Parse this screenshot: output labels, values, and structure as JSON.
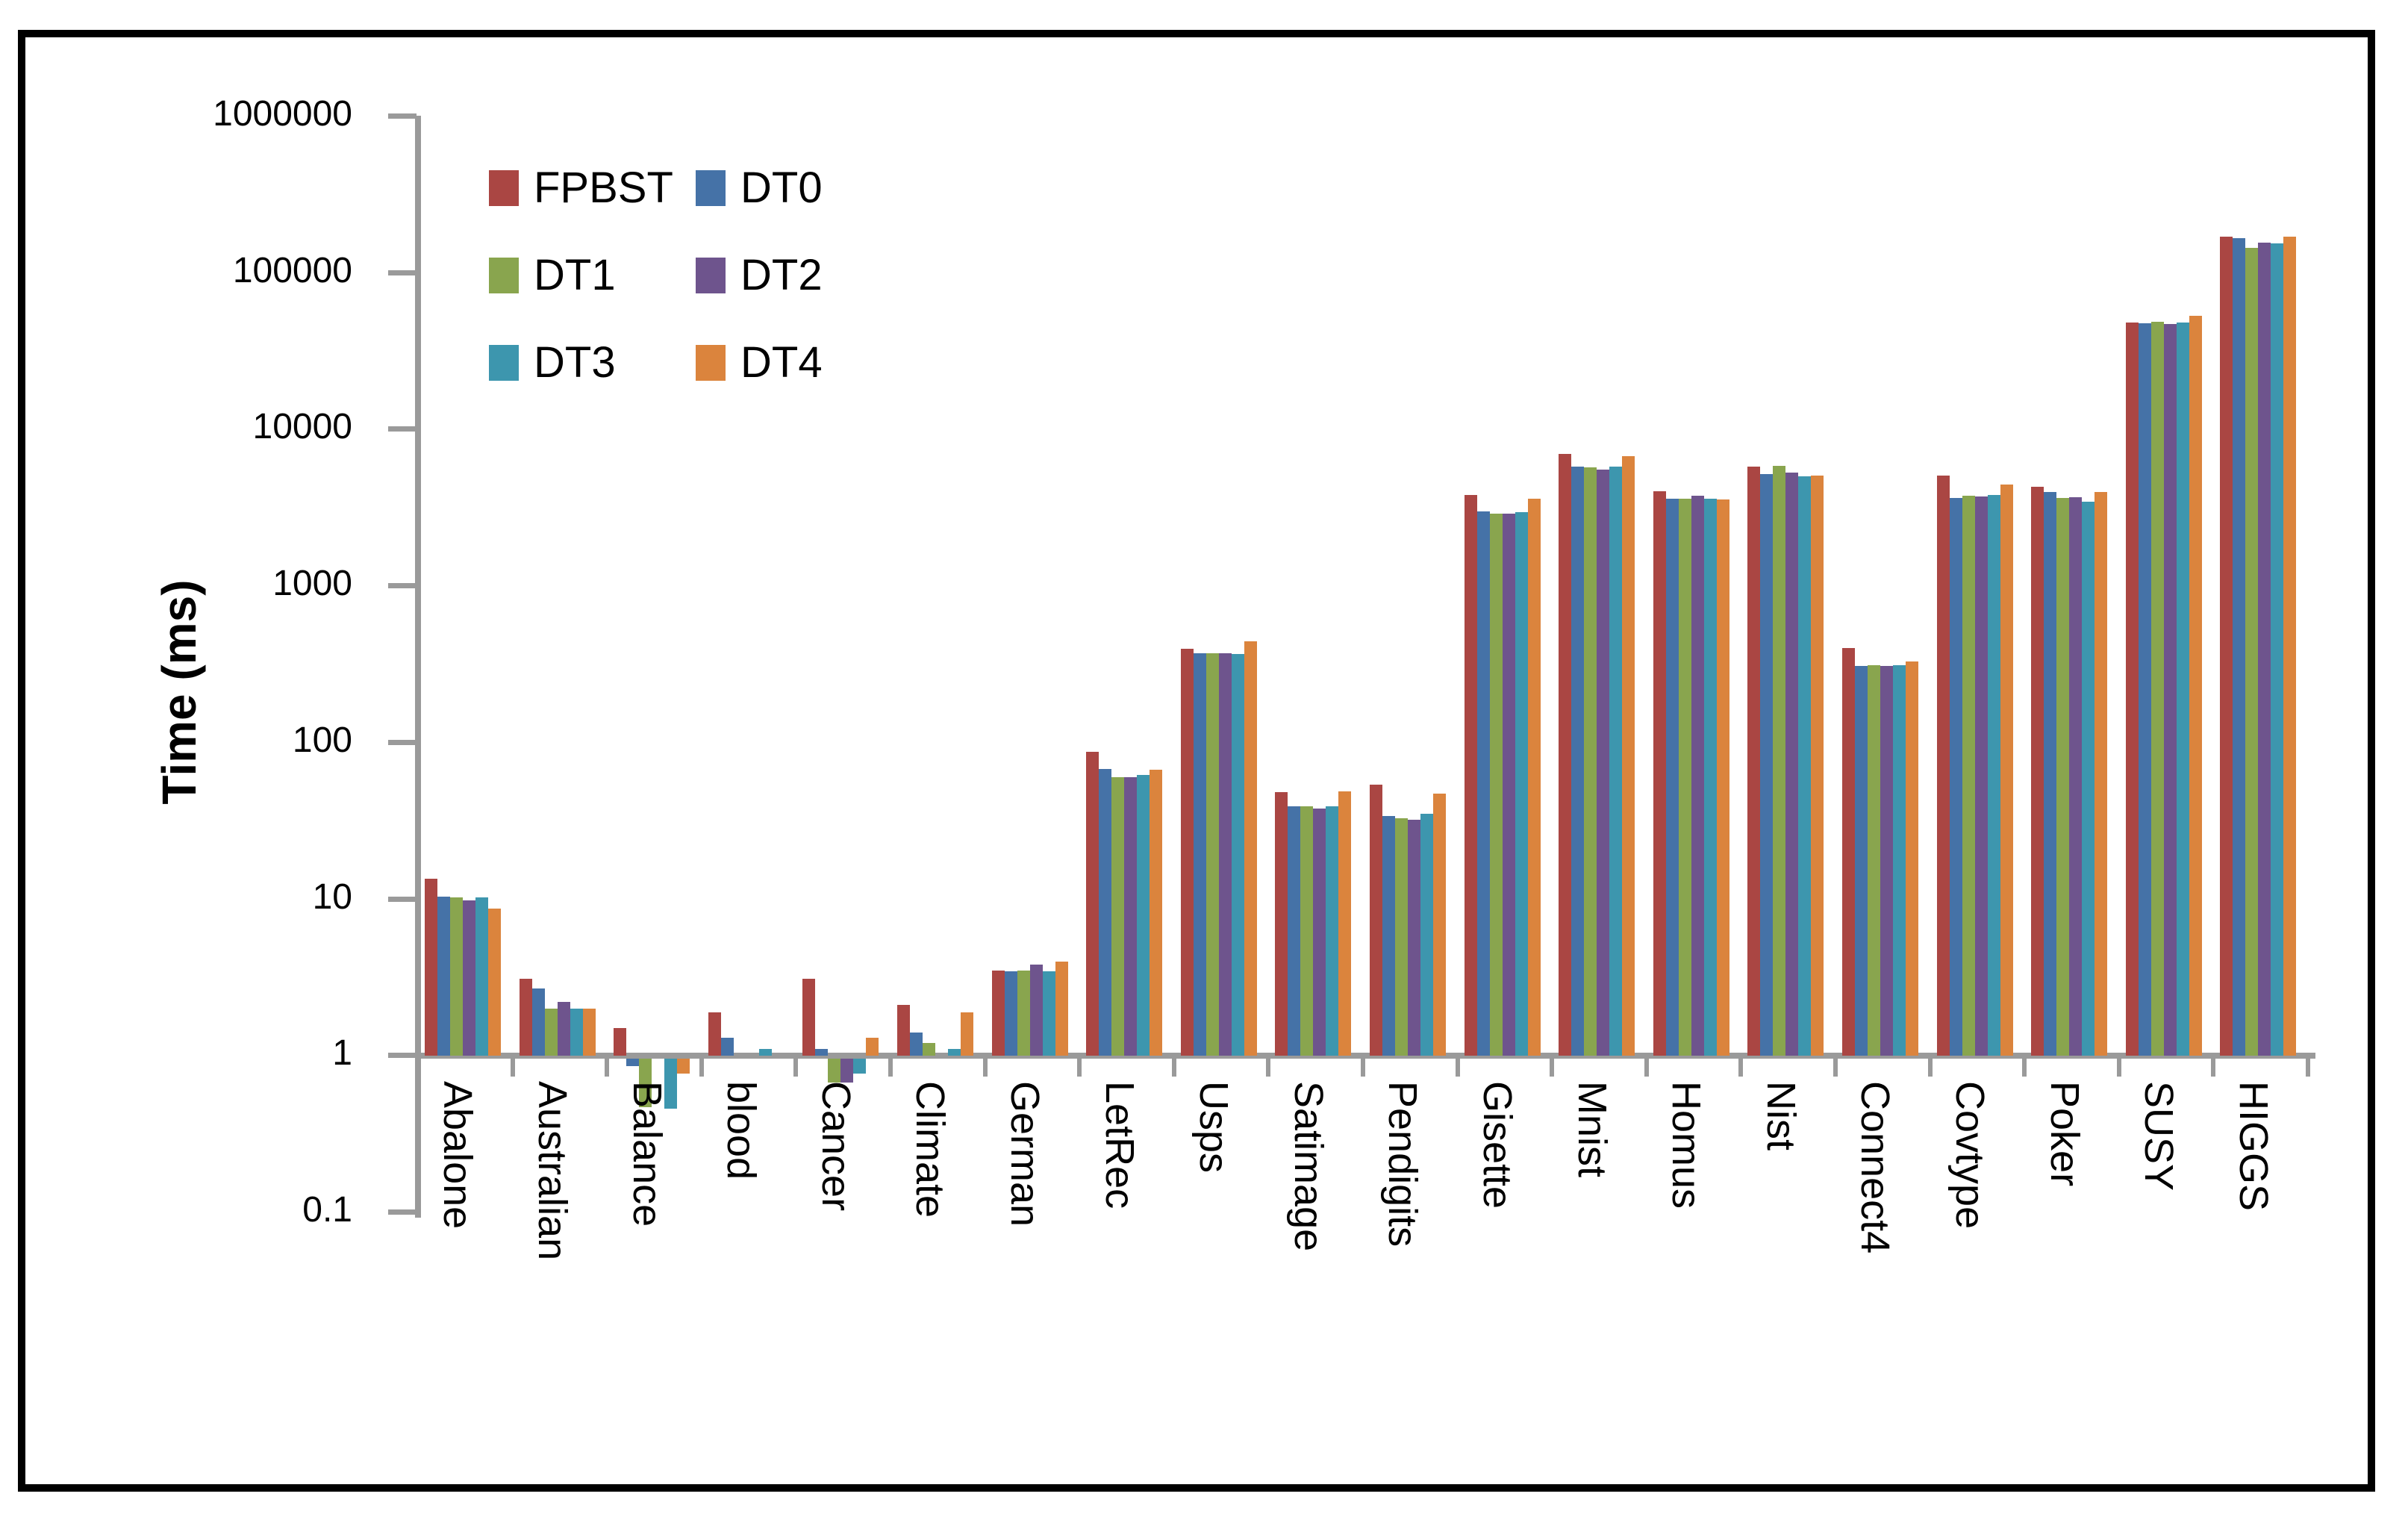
{
  "chart_data": {
    "type": "bar",
    "y_scale": "log",
    "title": "",
    "xlabel": "",
    "ylabel": "Time (ms)",
    "ylim": [
      0.1,
      1000000
    ],
    "baseline_value": 1,
    "grid": false,
    "legend_position": "top-left-two-columns",
    "y_tick_labels": [
      "1000000",
      "100000",
      "10000",
      "1000",
      "100",
      "10",
      "1",
      "0.1"
    ],
    "categories": [
      "Abalone",
      "Australian",
      "Balance",
      "blood",
      "Cancer",
      "Climate",
      "German",
      "LetRec",
      "Usps",
      "Satimage",
      "Pendigits",
      "Gisette",
      "Mnist",
      "Homus",
      "Nist",
      "Connect4",
      "Covtype",
      "Poker",
      "SUSY",
      "HIGGS"
    ],
    "series": [
      {
        "name": "FPBST",
        "color": "#AA4643",
        "values": [
          13.5,
          3.1,
          1.5,
          1.9,
          3.1,
          2.1,
          3.5,
          87,
          395,
          48,
          54,
          3800,
          7000,
          4050,
          5800,
          400,
          5050,
          4300,
          48000,
          170000
        ]
      },
      {
        "name": "DT0",
        "color": "#4572A7",
        "values": [
          10.4,
          2.7,
          0.9,
          1.3,
          1.1,
          1.4,
          3.45,
          68,
          370,
          39,
          34,
          3000,
          5800,
          3600,
          5200,
          310,
          3650,
          4000,
          47500,
          167000
        ]
      },
      {
        "name": "DT1",
        "color": "#89A54E",
        "values": [
          10.3,
          2.0,
          0.49,
          1.0,
          0.7,
          1.2,
          3.5,
          60,
          372,
          39,
          33,
          2900,
          5750,
          3600,
          5870,
          311,
          3780,
          3650,
          48500,
          145000
        ]
      },
      {
        "name": "DT2",
        "color": "#6E548D",
        "values": [
          9.8,
          2.2,
          1.0,
          1.0,
          0.7,
          1.0,
          3.8,
          60,
          372,
          38,
          32,
          2900,
          5530,
          3770,
          5290,
          309,
          3720,
          3700,
          47000,
          156000
        ]
      },
      {
        "name": "DT3",
        "color": "#3D96AE",
        "values": [
          10.2,
          2.0,
          0.48,
          1.1,
          0.8,
          1.1,
          3.45,
          62,
          369,
          39,
          35,
          2950,
          5760,
          3620,
          5010,
          311,
          3820,
          3450,
          48000,
          155000
        ]
      },
      {
        "name": "DT4",
        "color": "#DB843D",
        "values": [
          8.7,
          2.0,
          0.8,
          1.0,
          1.3,
          1.9,
          4.0,
          67,
          445,
          49,
          47,
          3600,
          6740,
          3560,
          5100,
          330,
          4450,
          4000,
          53000,
          171000
        ]
      }
    ]
  }
}
